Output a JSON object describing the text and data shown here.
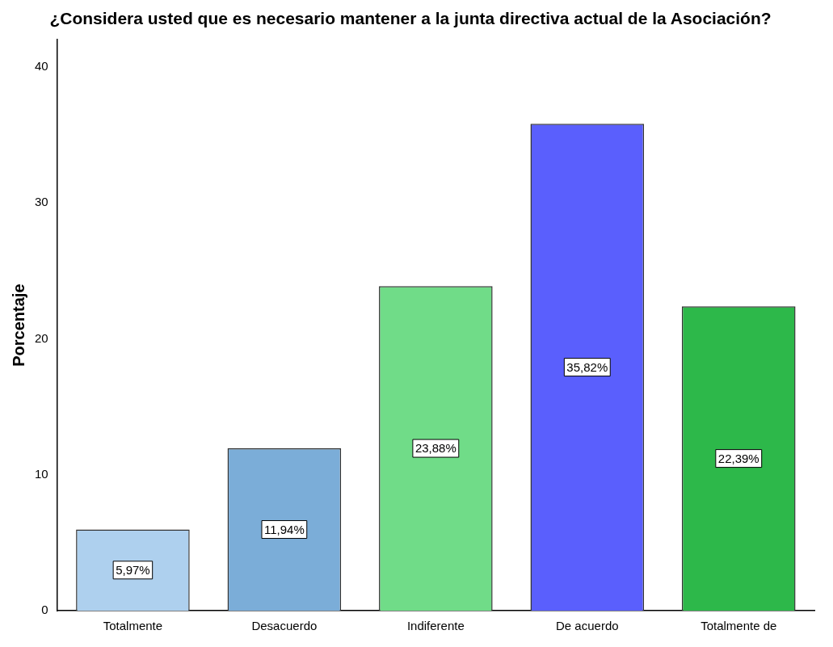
{
  "chart_data": {
    "type": "bar",
    "title": "¿Considera usted que es necesario mantener a la junta directiva actual de la Asociación?",
    "ylabel": "Porcentaje",
    "categories": [
      "Totalmente",
      "Desacuerdo",
      "Indiferente",
      "De acuerdo",
      "Totalmente de"
    ],
    "values": [
      5.97,
      11.94,
      23.88,
      35.82,
      22.39
    ],
    "colors": [
      "#aed0ee",
      "#7badd8",
      "#70dc88",
      "#5a5ffd",
      "#2db84a"
    ],
    "value_labels": [
      "5,97%",
      "11,94%",
      "23,88%",
      "35,82%",
      "22,39%"
    ],
    "ylim": [
      0,
      42
    ],
    "yticks": [
      0,
      10,
      20,
      30,
      40
    ],
    "grid": false,
    "legend": false
  }
}
